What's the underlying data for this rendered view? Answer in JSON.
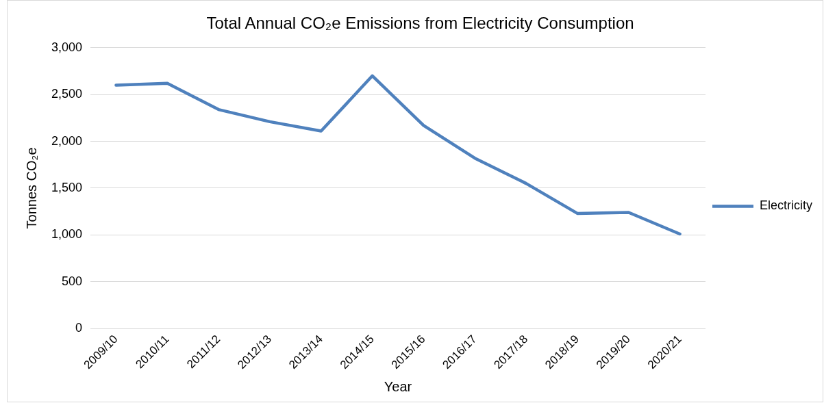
{
  "chart_data": {
    "type": "line",
    "title": "Total Annual CO₂e Emissions from Electricity Consumption",
    "xlabel": "Year",
    "ylabel": "Tonnes CO₂e",
    "categories": [
      "2009/10",
      "2010/11",
      "2011/12",
      "2012/13",
      "2013/14",
      "2014/15",
      "2015/16",
      "2016/17",
      "2017/18",
      "2018/19",
      "2019/20",
      "2020/21"
    ],
    "series": [
      {
        "name": "Electricity",
        "color": "#4f81bd",
        "values": [
          2600,
          2620,
          2340,
          2210,
          2110,
          2700,
          2170,
          1820,
          1550,
          1230,
          1240,
          1010
        ]
      }
    ],
    "ylim": [
      0,
      3000
    ],
    "yticks": [
      {
        "value": 0,
        "label": "0"
      },
      {
        "value": 500,
        "label": "500"
      },
      {
        "value": 1000,
        "label": "1,000"
      },
      {
        "value": 1500,
        "label": "1,500"
      },
      {
        "value": 2000,
        "label": "2,000"
      },
      {
        "value": 2500,
        "label": "2,500"
      },
      {
        "value": 3000,
        "label": "3,000"
      }
    ],
    "grid": "y",
    "legend": "right",
    "marker": "none",
    "line_style": "solid"
  }
}
